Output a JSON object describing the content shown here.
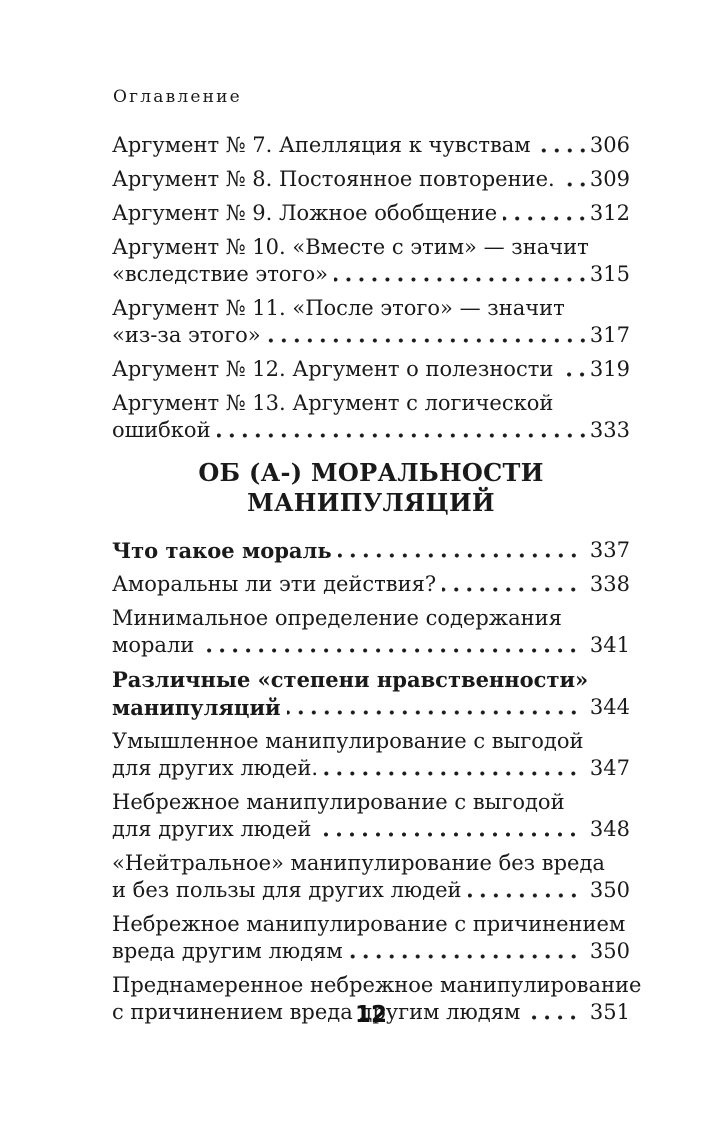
{
  "page": {
    "running_header": "Оглавление",
    "folio": "12",
    "background_color": "#ffffff",
    "text_color": "#1a1a1a"
  },
  "toc": {
    "sections": [
      {
        "heading": "",
        "entries": [
          {
            "lines": [
              "Аргумент № 7. Апелляция к чувствам"
            ],
            "page": "306",
            "bold": false
          },
          {
            "lines": [
              "Аргумент № 8. Постоянное повторение."
            ],
            "page": "309",
            "bold": false
          },
          {
            "lines": [
              "Аргумент № 9. Ложное обобщение"
            ],
            "page": "312",
            "bold": false
          },
          {
            "lines": [
              "Аргумент № 10. «Вместе с этим» — значит",
              "«вследствие этого»"
            ],
            "page": "315",
            "bold": false
          },
          {
            "lines": [
              "Аргумент № 11. «После этого» — значит",
              "«из-за этого»"
            ],
            "page": "317",
            "bold": false
          },
          {
            "lines": [
              "Аргумент № 12. Аргумент о полезности"
            ],
            "page": "319",
            "bold": false
          },
          {
            "lines": [
              "Аргумент № 13. Аргумент с логической",
              "ошибкой"
            ],
            "page": "333",
            "bold": false
          }
        ]
      },
      {
        "heading": "ОБ (А-) МОРАЛЬНОСТИ МАНИПУЛЯЦИЙ",
        "entries": [
          {
            "lines": [
              "Что такое мораль"
            ],
            "page": "337",
            "bold": true
          },
          {
            "lines": [
              "Аморальны ли эти действия?"
            ],
            "page": "338",
            "bold": false
          },
          {
            "lines": [
              "Минимальное определение содержания",
              "морали"
            ],
            "page": "341",
            "bold": false
          },
          {
            "lines": [
              "Различные «степени нравственности»",
              "манипуляций"
            ],
            "page": "344",
            "bold": true
          },
          {
            "lines": [
              "Умышленное манипулирование с выгодой",
              "для других людей."
            ],
            "page": "347",
            "bold": false
          },
          {
            "lines": [
              "Небрежное манипулирование с выгодой",
              "для других людей"
            ],
            "page": "348",
            "bold": false
          },
          {
            "lines": [
              "«Нейтральное» манипулирование без вреда",
              "и без пользы для других людей"
            ],
            "page": "350",
            "bold": false
          },
          {
            "lines": [
              "Небрежное манипулирование с причинением",
              "вреда другим людям"
            ],
            "page": "350",
            "bold": false
          },
          {
            "lines": [
              "Преднамеренное небрежное манипулирование",
              "с причинением вреда другим людям"
            ],
            "page": "351",
            "bold": false
          }
        ]
      }
    ]
  }
}
